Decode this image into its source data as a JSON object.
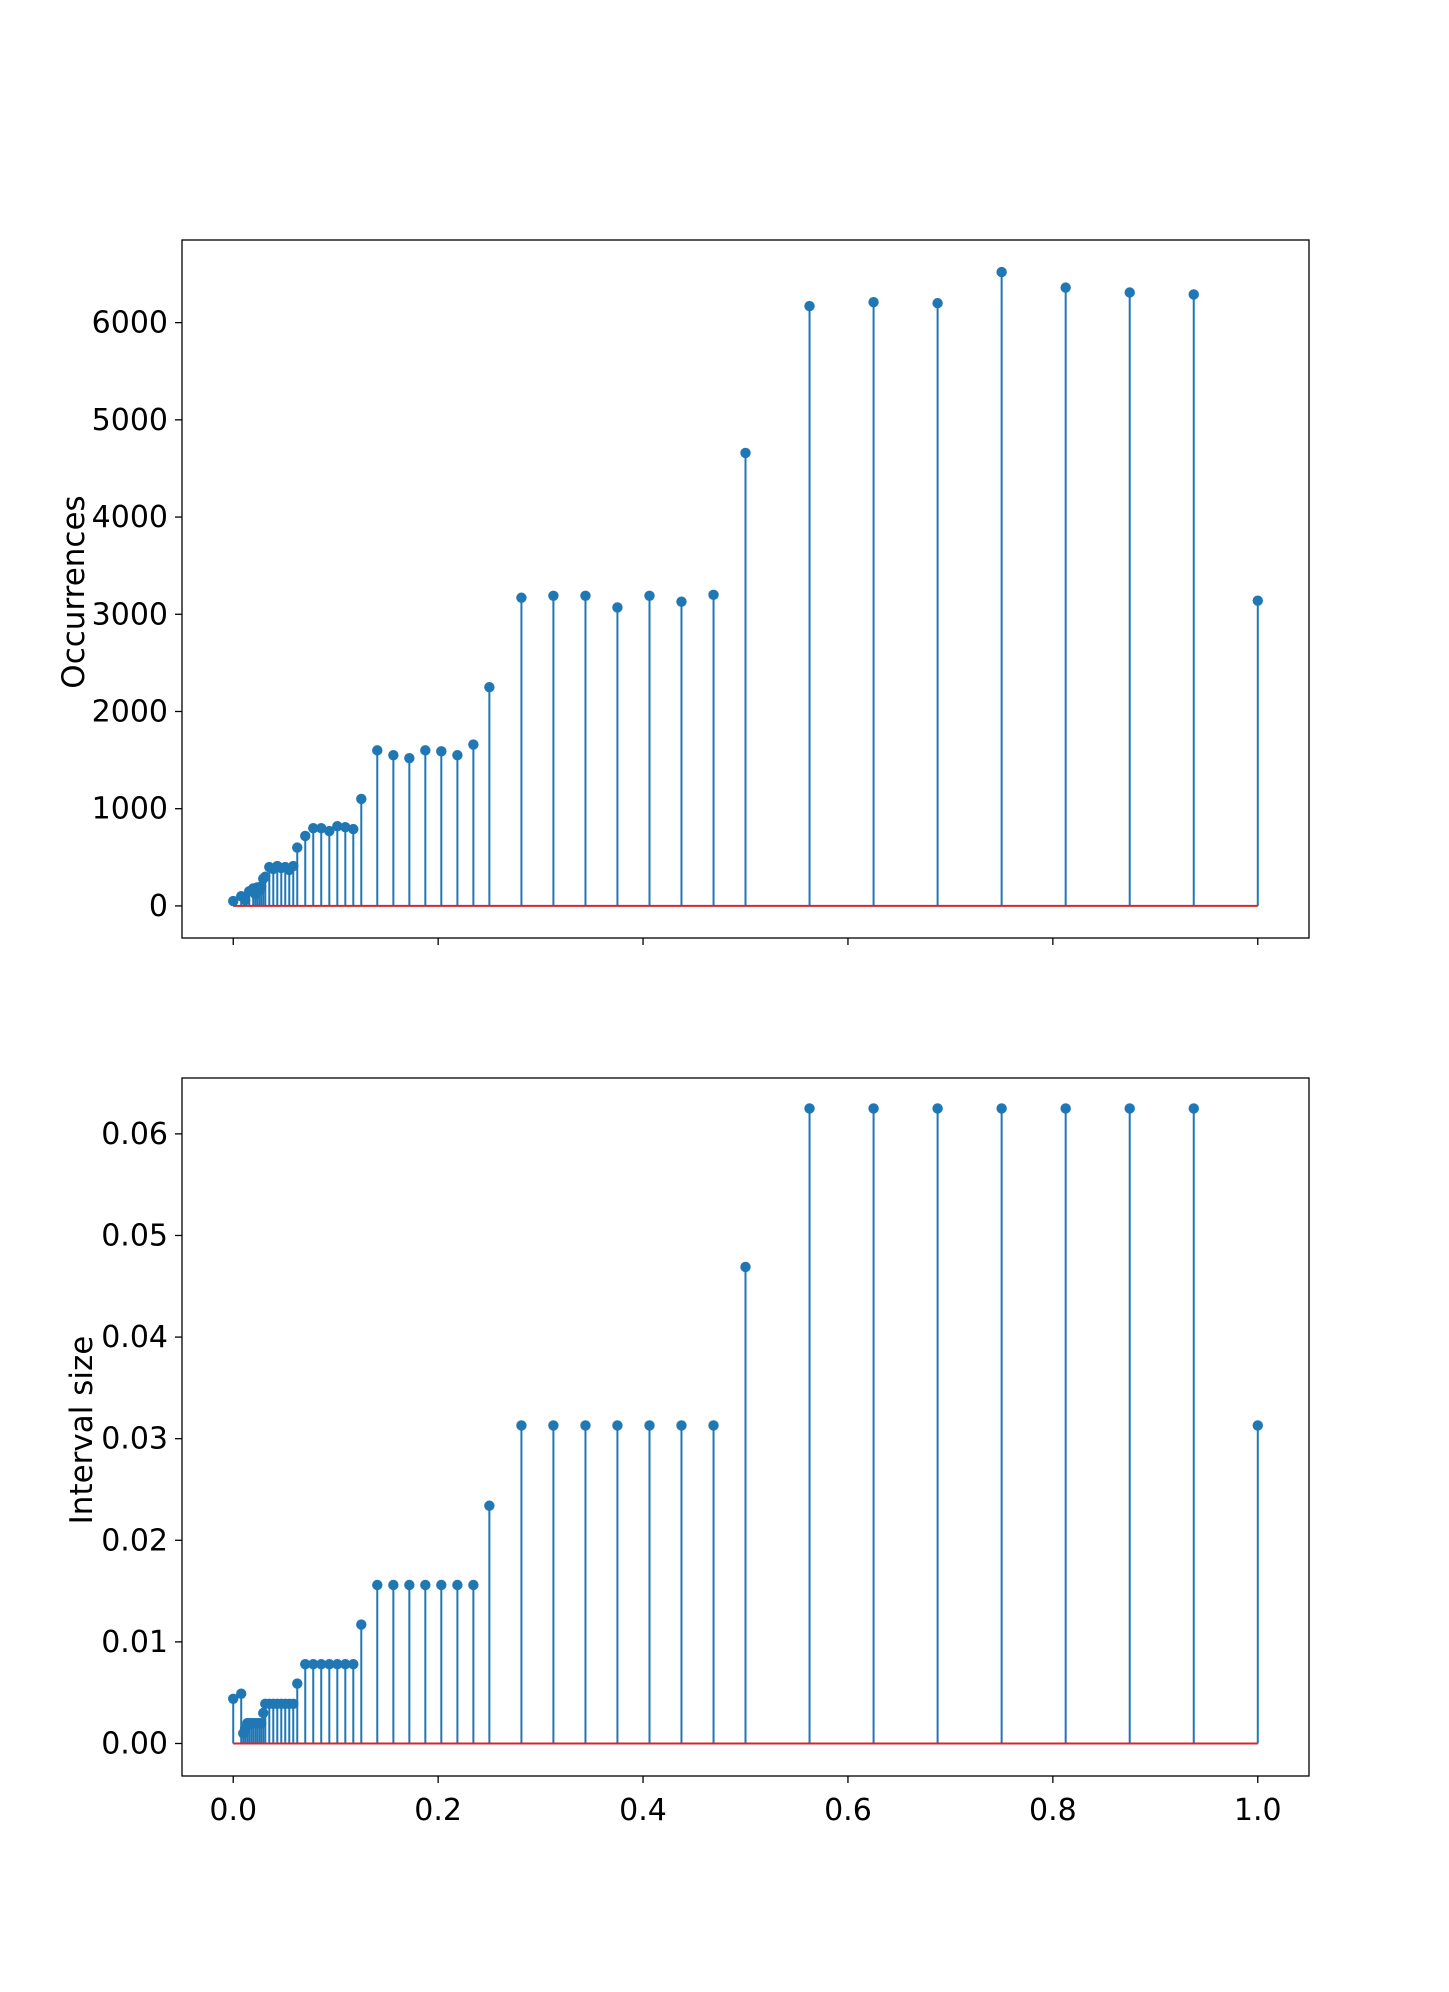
{
  "figure": {
    "colors": {
      "stem": "#1f77b4",
      "baseline": "#d62728",
      "axes": "#000000",
      "background": "#ffffff"
    }
  },
  "chart_data": [
    {
      "type": "stem",
      "ylabel": "Occurrences",
      "xlabel": "",
      "xlim": [
        -0.05,
        1.05
      ],
      "ylim": [
        -330,
        6850
      ],
      "xticks": [
        0.0,
        0.2,
        0.4,
        0.6,
        0.8,
        1.0
      ],
      "xtick_labels_visible": false,
      "yticks": [
        0,
        1000,
        2000,
        3000,
        4000,
        5000,
        6000
      ],
      "ytick_labels": [
        "0",
        "1000",
        "2000",
        "3000",
        "4000",
        "5000",
        "6000"
      ],
      "grid": false,
      "x": [
        0.0,
        0.0078,
        0.0117,
        0.0156,
        0.0195,
        0.0215,
        0.0234,
        0.0254,
        0.0273,
        0.0293,
        0.0313,
        0.0352,
        0.0391,
        0.043,
        0.0469,
        0.0508,
        0.0547,
        0.0586,
        0.0625,
        0.0703,
        0.0781,
        0.0859,
        0.0938,
        0.1016,
        0.1094,
        0.1172,
        0.125,
        0.1406,
        0.1563,
        0.1719,
        0.1875,
        0.2031,
        0.2188,
        0.2344,
        0.25,
        0.2813,
        0.3125,
        0.3438,
        0.375,
        0.4063,
        0.4375,
        0.4688,
        0.5,
        0.5625,
        0.625,
        0.6875,
        0.75,
        0.8125,
        0.875,
        0.9375,
        1.0
      ],
      "y": [
        50,
        100,
        60,
        150,
        180,
        120,
        190,
        160,
        200,
        280,
        300,
        400,
        380,
        410,
        390,
        400,
        370,
        410,
        600,
        720,
        800,
        800,
        770,
        820,
        810,
        790,
        1100,
        1600,
        1550,
        1520,
        1600,
        1590,
        1550,
        1660,
        2250,
        3170,
        3190,
        3190,
        3070,
        3190,
        3130,
        3200,
        4660,
        6170,
        6210,
        6200,
        6520,
        6360,
        6310,
        6290,
        3140
      ]
    },
    {
      "type": "stem",
      "ylabel": "Interval size",
      "xlabel": "",
      "xlim": [
        -0.05,
        1.05
      ],
      "ylim": [
        -0.0032,
        0.0655
      ],
      "xticks": [
        0.0,
        0.2,
        0.4,
        0.6,
        0.8,
        1.0
      ],
      "xtick_labels": [
        "0.0",
        "0.2",
        "0.4",
        "0.6",
        "0.8",
        "1.0"
      ],
      "yticks": [
        0.0,
        0.01,
        0.02,
        0.03,
        0.04,
        0.05,
        0.06
      ],
      "ytick_labels": [
        "0.00",
        "0.01",
        "0.02",
        "0.03",
        "0.04",
        "0.05",
        "0.06"
      ],
      "grid": false,
      "x": [
        0.0,
        0.0078,
        0.0098,
        0.0117,
        0.0137,
        0.0156,
        0.0176,
        0.0195,
        0.0215,
        0.0234,
        0.0254,
        0.0273,
        0.0293,
        0.0313,
        0.0352,
        0.0391,
        0.043,
        0.0469,
        0.0508,
        0.0547,
        0.0586,
        0.0625,
        0.0703,
        0.0781,
        0.0859,
        0.0938,
        0.1016,
        0.1094,
        0.1172,
        0.125,
        0.1406,
        0.1563,
        0.1719,
        0.1875,
        0.2031,
        0.2188,
        0.2344,
        0.25,
        0.2813,
        0.3125,
        0.3438,
        0.375,
        0.4063,
        0.4375,
        0.4688,
        0.5,
        0.5625,
        0.625,
        0.6875,
        0.75,
        0.8125,
        0.875,
        0.9375,
        1.0
      ],
      "y": [
        0.0044,
        0.0049,
        0.001,
        0.0015,
        0.002,
        0.002,
        0.002,
        0.002,
        0.002,
        0.002,
        0.002,
        0.002,
        0.003,
        0.0039,
        0.0039,
        0.0039,
        0.0039,
        0.0039,
        0.0039,
        0.0039,
        0.0039,
        0.0059,
        0.0078,
        0.0078,
        0.0078,
        0.0078,
        0.0078,
        0.0078,
        0.0078,
        0.0117,
        0.0156,
        0.0156,
        0.0156,
        0.0156,
        0.0156,
        0.0156,
        0.0156,
        0.0234,
        0.0313,
        0.0313,
        0.0313,
        0.0313,
        0.0313,
        0.0313,
        0.0313,
        0.0469,
        0.0625,
        0.0625,
        0.0625,
        0.0625,
        0.0625,
        0.0625,
        0.0625,
        0.0313
      ]
    }
  ]
}
